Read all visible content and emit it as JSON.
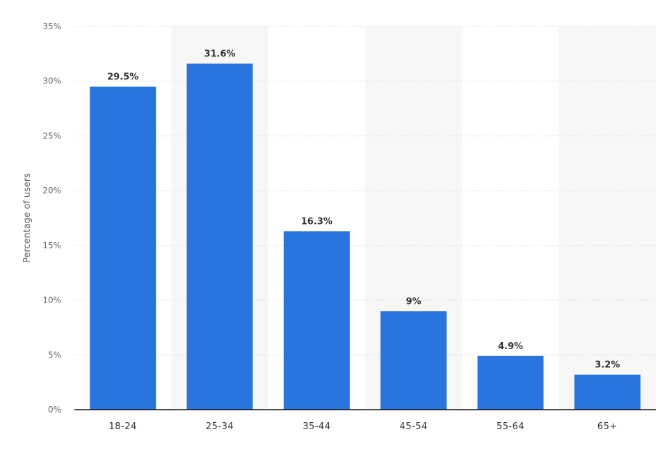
{
  "chart_data": {
    "type": "bar",
    "categories": [
      "18-24",
      "25-34",
      "35-44",
      "45-54",
      "55-64",
      "65+"
    ],
    "values": [
      29.5,
      31.6,
      16.3,
      9,
      4.9,
      3.2
    ],
    "data_labels": [
      "29.5%",
      "31.6%",
      "16.3%",
      "9%",
      "4.9%",
      "3.2%"
    ],
    "ylabel": "Percentage of users",
    "ylim": [
      0,
      35
    ],
    "yticks": [
      0,
      5,
      10,
      15,
      20,
      25,
      30,
      35
    ],
    "ytick_labels": [
      "0%",
      "5%",
      "10%",
      "15%",
      "20%",
      "25%",
      "30%",
      "35%"
    ],
    "grid": true,
    "legend": "none",
    "colors": {
      "bar": "#2876dd",
      "alternate_band": "#f7f7f7",
      "gridline": "#cccccc",
      "baseline": "#111111"
    }
  }
}
